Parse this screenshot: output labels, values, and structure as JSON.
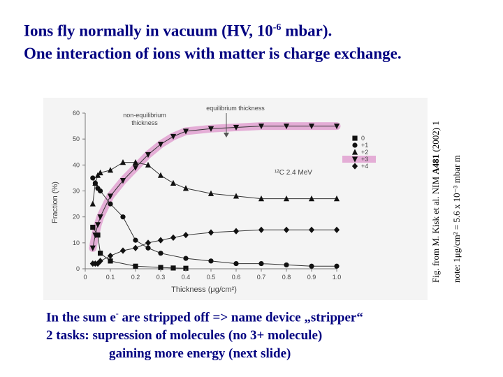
{
  "slide": {
    "title_line1_pre": "Ions fly normally in vacuum (HV, 10",
    "title_line1_sup": "-6",
    "title_line1_post": " mbar).",
    "title_line2": "One interaction of ions with matter is charge exchange.",
    "citation_pre": "Fig. from M. Kisk et al. NIM ",
    "citation_bold": "A481",
    "citation_post": " (2002) 1",
    "note_text": "note:   1μg/cm² = 5.6 x 10⁻³ mbar m",
    "bottom_line1_pre": "In the sum e",
    "bottom_line1_sup": "-",
    "bottom_line1_post": " are stripped off => name device „stripper“",
    "bottom_line2": "2 tasks:  supression of molecules (no 3+ molecule)",
    "bottom_line3": "gaining more energy  (next slide)"
  },
  "chart_data": {
    "type": "scatter",
    "title": "",
    "xlabel": "Thickness (μg/cm²)",
    "ylabel": "Fraction (%)",
    "xlim": [
      0,
      1.0
    ],
    "ylim": [
      0,
      60
    ],
    "xticks": [
      "0",
      "0.1",
      "0.2",
      "0.3",
      "0.4",
      "0.5",
      "0.6",
      "0.7",
      "0.8",
      "0.9",
      "1.0"
    ],
    "yticks": [
      "0",
      "10",
      "20",
      "30",
      "40",
      "50",
      "60"
    ],
    "annotations": [
      "non-equilibrium thickness",
      "equilibrium thickness",
      "¹²C 2.4 MeV"
    ],
    "legend_position": "right",
    "highlight_color": "#e0a0d0",
    "series": [
      {
        "name": "0",
        "marker": "square",
        "x": [
          0.03,
          0.05,
          0.06,
          0.1,
          0.2,
          0.3,
          0.35,
          0.4
        ],
        "y": [
          16,
          13,
          6,
          3,
          1,
          0.5,
          0.3,
          0.2
        ]
      },
      {
        "name": "+1",
        "marker": "circle",
        "x": [
          0.03,
          0.04,
          0.05,
          0.06,
          0.1,
          0.15,
          0.2,
          0.25,
          0.3,
          0.4,
          0.5,
          0.6,
          0.7,
          0.8,
          0.9,
          1.0
        ],
        "y": [
          35,
          33,
          31,
          30,
          25,
          20,
          11,
          8,
          6,
          4,
          3,
          2,
          2,
          1.5,
          1,
          1
        ]
      },
      {
        "name": "+2",
        "marker": "triangle-up",
        "x": [
          0.03,
          0.04,
          0.05,
          0.06,
          0.1,
          0.15,
          0.2,
          0.25,
          0.3,
          0.35,
          0.4,
          0.5,
          0.6,
          0.7,
          0.8,
          0.9,
          1.0
        ],
        "y": [
          25,
          33,
          36,
          37,
          38,
          41,
          41,
          40,
          36,
          33,
          31,
          29,
          28,
          27,
          27,
          27,
          27
        ]
      },
      {
        "name": "+3",
        "marker": "triangle-down",
        "x": [
          0.03,
          0.04,
          0.05,
          0.06,
          0.1,
          0.15,
          0.2,
          0.25,
          0.3,
          0.35,
          0.4,
          0.5,
          0.6,
          0.7,
          0.8,
          0.9,
          1.0
        ],
        "y": [
          8,
          13,
          17,
          20,
          28,
          34,
          39,
          44,
          48,
          51,
          53,
          54,
          54.5,
          55,
          55,
          55,
          55
        ]
      },
      {
        "name": "+4",
        "marker": "diamond",
        "x": [
          0.03,
          0.04,
          0.05,
          0.06,
          0.1,
          0.15,
          0.2,
          0.25,
          0.3,
          0.35,
          0.4,
          0.5,
          0.6,
          0.7,
          0.8,
          0.9,
          1.0
        ],
        "y": [
          2,
          2,
          2,
          3,
          5,
          7,
          8,
          10,
          11,
          12,
          13,
          14,
          14.5,
          15,
          15,
          15,
          15
        ]
      }
    ]
  }
}
